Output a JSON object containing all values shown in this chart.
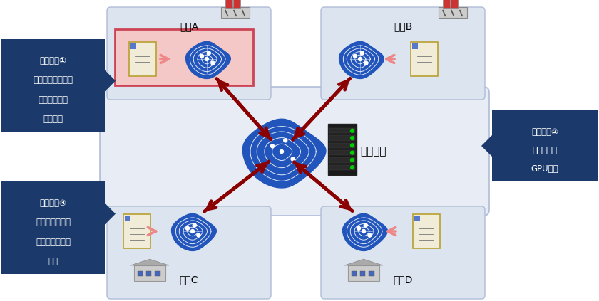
{
  "bg_color": "#ffffff",
  "navy": "#1b3a6b",
  "arrow_color": "#8b0000",
  "node_bg": "#dce4f0",
  "node_border": "#b0bcd8",
  "center_bg": "#e8edf5",
  "center_border": "#b0bcd8",
  "brain_color": "#2255bb",
  "doc_color": "#f0ecd8",
  "doc_border": "#b8a030",
  "highlight_border": "#cc4455",
  "highlight_bg": "#f5c8c8",
  "inner_arrow": "#f08080",
  "point1": [
    "ポイント①",
    "各クライアントが",
    "完全非同期で",
    "学習可能"
  ],
  "point2": [
    "ポイント②",
    "サーバーは",
    "GPU不要"
  ],
  "point3": [
    "ポイント③",
    "学習状況に応じ",
    "動的に通信量を",
    "制御"
  ],
  "node_labels": [
    "拠点A",
    "拠点B",
    "拠点C",
    "拠点D"
  ],
  "server_label": "サーバー"
}
